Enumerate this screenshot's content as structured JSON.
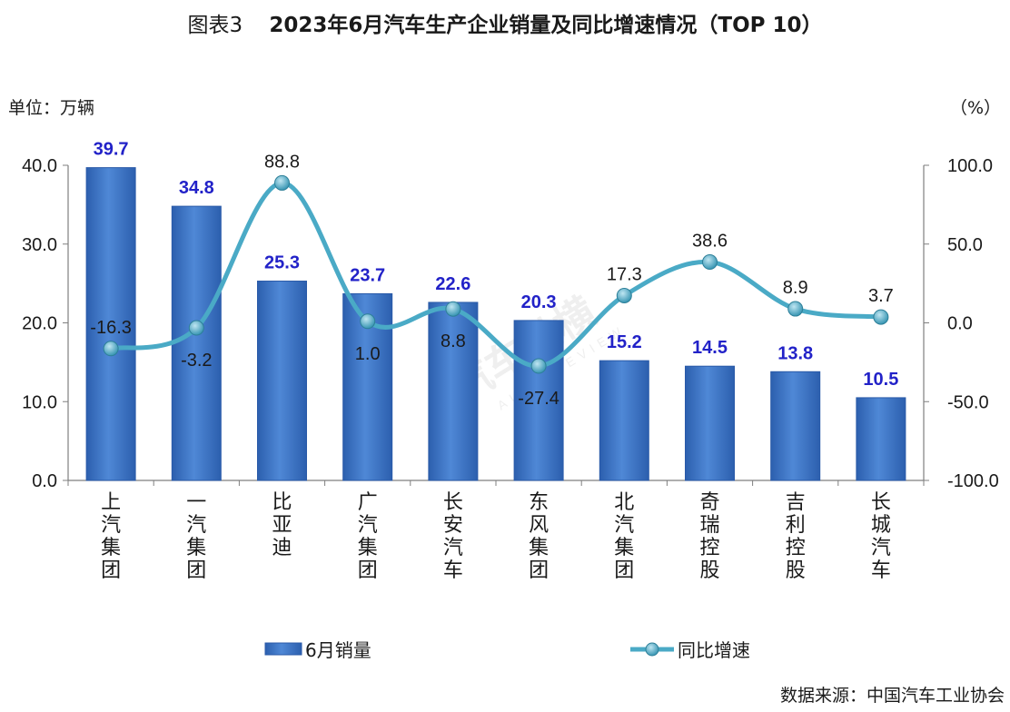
{
  "title": {
    "fig_no": "图表3",
    "text": "2023年6月汽车生产企业销量及同比增速情况（TOP 10）"
  },
  "unit_left": "单位：万辆",
  "unit_right": "（%）",
  "source": "数据来源：中国汽车工业协会",
  "watermark": {
    "cn": "汽车纵横",
    "en": "AUTO REVIEW"
  },
  "colors": {
    "bar": "#3f77c8",
    "bar_dark": "#2a5aa8",
    "bar_label": "#2222c8",
    "line": "#4aaac6",
    "marker": "#3a9cb8",
    "axis": "#7f7f7f"
  },
  "chart_data": {
    "type": "bar",
    "categories": [
      "上汽集团",
      "一汽集团",
      "比亚迪",
      "广汽集团",
      "长安汽车",
      "东风集团",
      "北汽集团",
      "奇瑞控股",
      "吉利控股",
      "长城汽车"
    ],
    "series": [
      {
        "name": "6月销量",
        "type": "bar",
        "axis": "left",
        "values": [
          39.7,
          34.8,
          25.3,
          23.7,
          22.6,
          20.3,
          15.2,
          14.5,
          13.8,
          10.5
        ]
      },
      {
        "name": "同比增速",
        "type": "line",
        "axis": "right",
        "values": [
          -16.3,
          -3.2,
          88.8,
          1.0,
          8.8,
          -27.4,
          17.3,
          38.6,
          8.9,
          3.7
        ]
      }
    ],
    "y_left": {
      "range": [
        0,
        40
      ],
      "ticks": [
        "0.0",
        "10.0",
        "20.0",
        "30.0",
        "40.0"
      ]
    },
    "y_right": {
      "range": [
        -100,
        100
      ],
      "ticks": [
        "-100.0",
        "-50.0",
        "0.0",
        "50.0",
        "100.0"
      ]
    },
    "legend_position": "bottom",
    "grid": false
  }
}
